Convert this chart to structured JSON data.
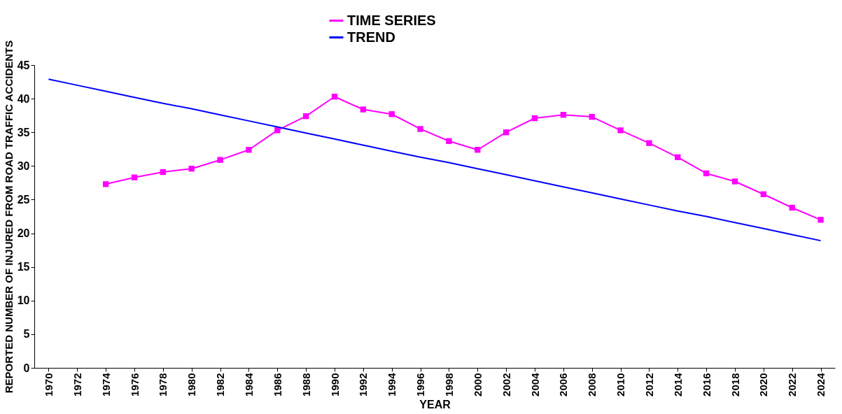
{
  "chart_data": {
    "type": "line",
    "xlabel": "YEAR",
    "ylabel": "REPORTED NUMBER OF INJURED FROM ROAD TRAFFIC ACCIDENTS",
    "categories": [
      "1970",
      "1972",
      "1974",
      "1976",
      "1978",
      "1980",
      "1982",
      "1984",
      "1986",
      "1988",
      "1990",
      "1992",
      "1994",
      "1996",
      "1998",
      "2000",
      "2002",
      "2004",
      "2006",
      "2008",
      "2010",
      "2012",
      "2014",
      "2016",
      "2018",
      "2020",
      "2022",
      "2024"
    ],
    "series": [
      {
        "name": "TIME SERIES",
        "color": "#ff00ff",
        "marker": "square",
        "values": [
          null,
          null,
          27.3,
          28.3,
          29.1,
          29.6,
          30.9,
          32.4,
          35.3,
          37.4,
          40.3,
          38.4,
          37.7,
          35.5,
          33.7,
          32.4,
          35.0,
          37.1,
          37.6,
          37.3,
          35.3,
          33.4,
          31.3,
          28.9,
          27.7,
          25.8,
          23.8,
          22.0
        ]
      },
      {
        "name": "TREND",
        "color": "#0000ff",
        "type": "line",
        "marker": "none",
        "values": [
          42.9,
          42.0,
          41.1,
          40.2,
          39.3,
          38.5,
          37.6,
          36.7,
          35.8,
          34.9,
          34.0,
          33.1,
          32.2,
          31.3,
          30.5,
          29.6,
          28.7,
          27.8,
          26.9,
          26.0,
          25.1,
          24.2,
          23.3,
          22.5,
          21.6,
          20.7,
          19.8,
          18.9
        ]
      }
    ],
    "ylim": [
      0,
      45
    ],
    "yticks": [
      0,
      5,
      10,
      15,
      20,
      25,
      30,
      35,
      40,
      45
    ],
    "grid": false,
    "legend": "top"
  }
}
